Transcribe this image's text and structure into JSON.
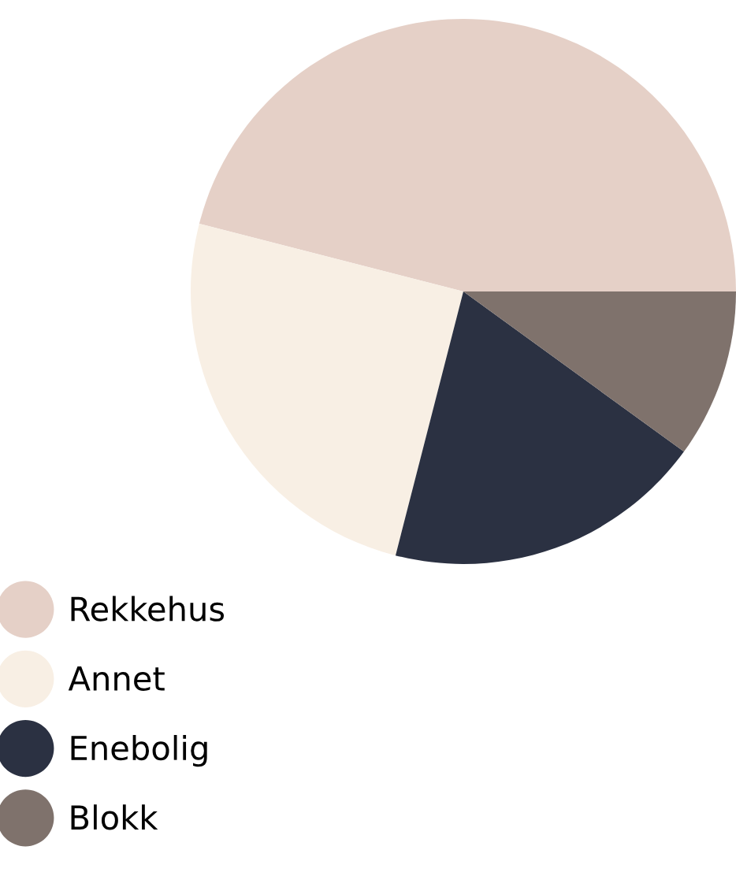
{
  "chart_data": {
    "type": "pie",
    "categories": [
      "Rekkehus",
      "Annet",
      "Enebolig",
      "Blokk"
    ],
    "values": [
      46,
      25,
      19,
      10
    ],
    "colors": [
      "#e5d0c7",
      "#f8efe4",
      "#2b3142",
      "#7f726c"
    ],
    "legend": "bottom left"
  }
}
